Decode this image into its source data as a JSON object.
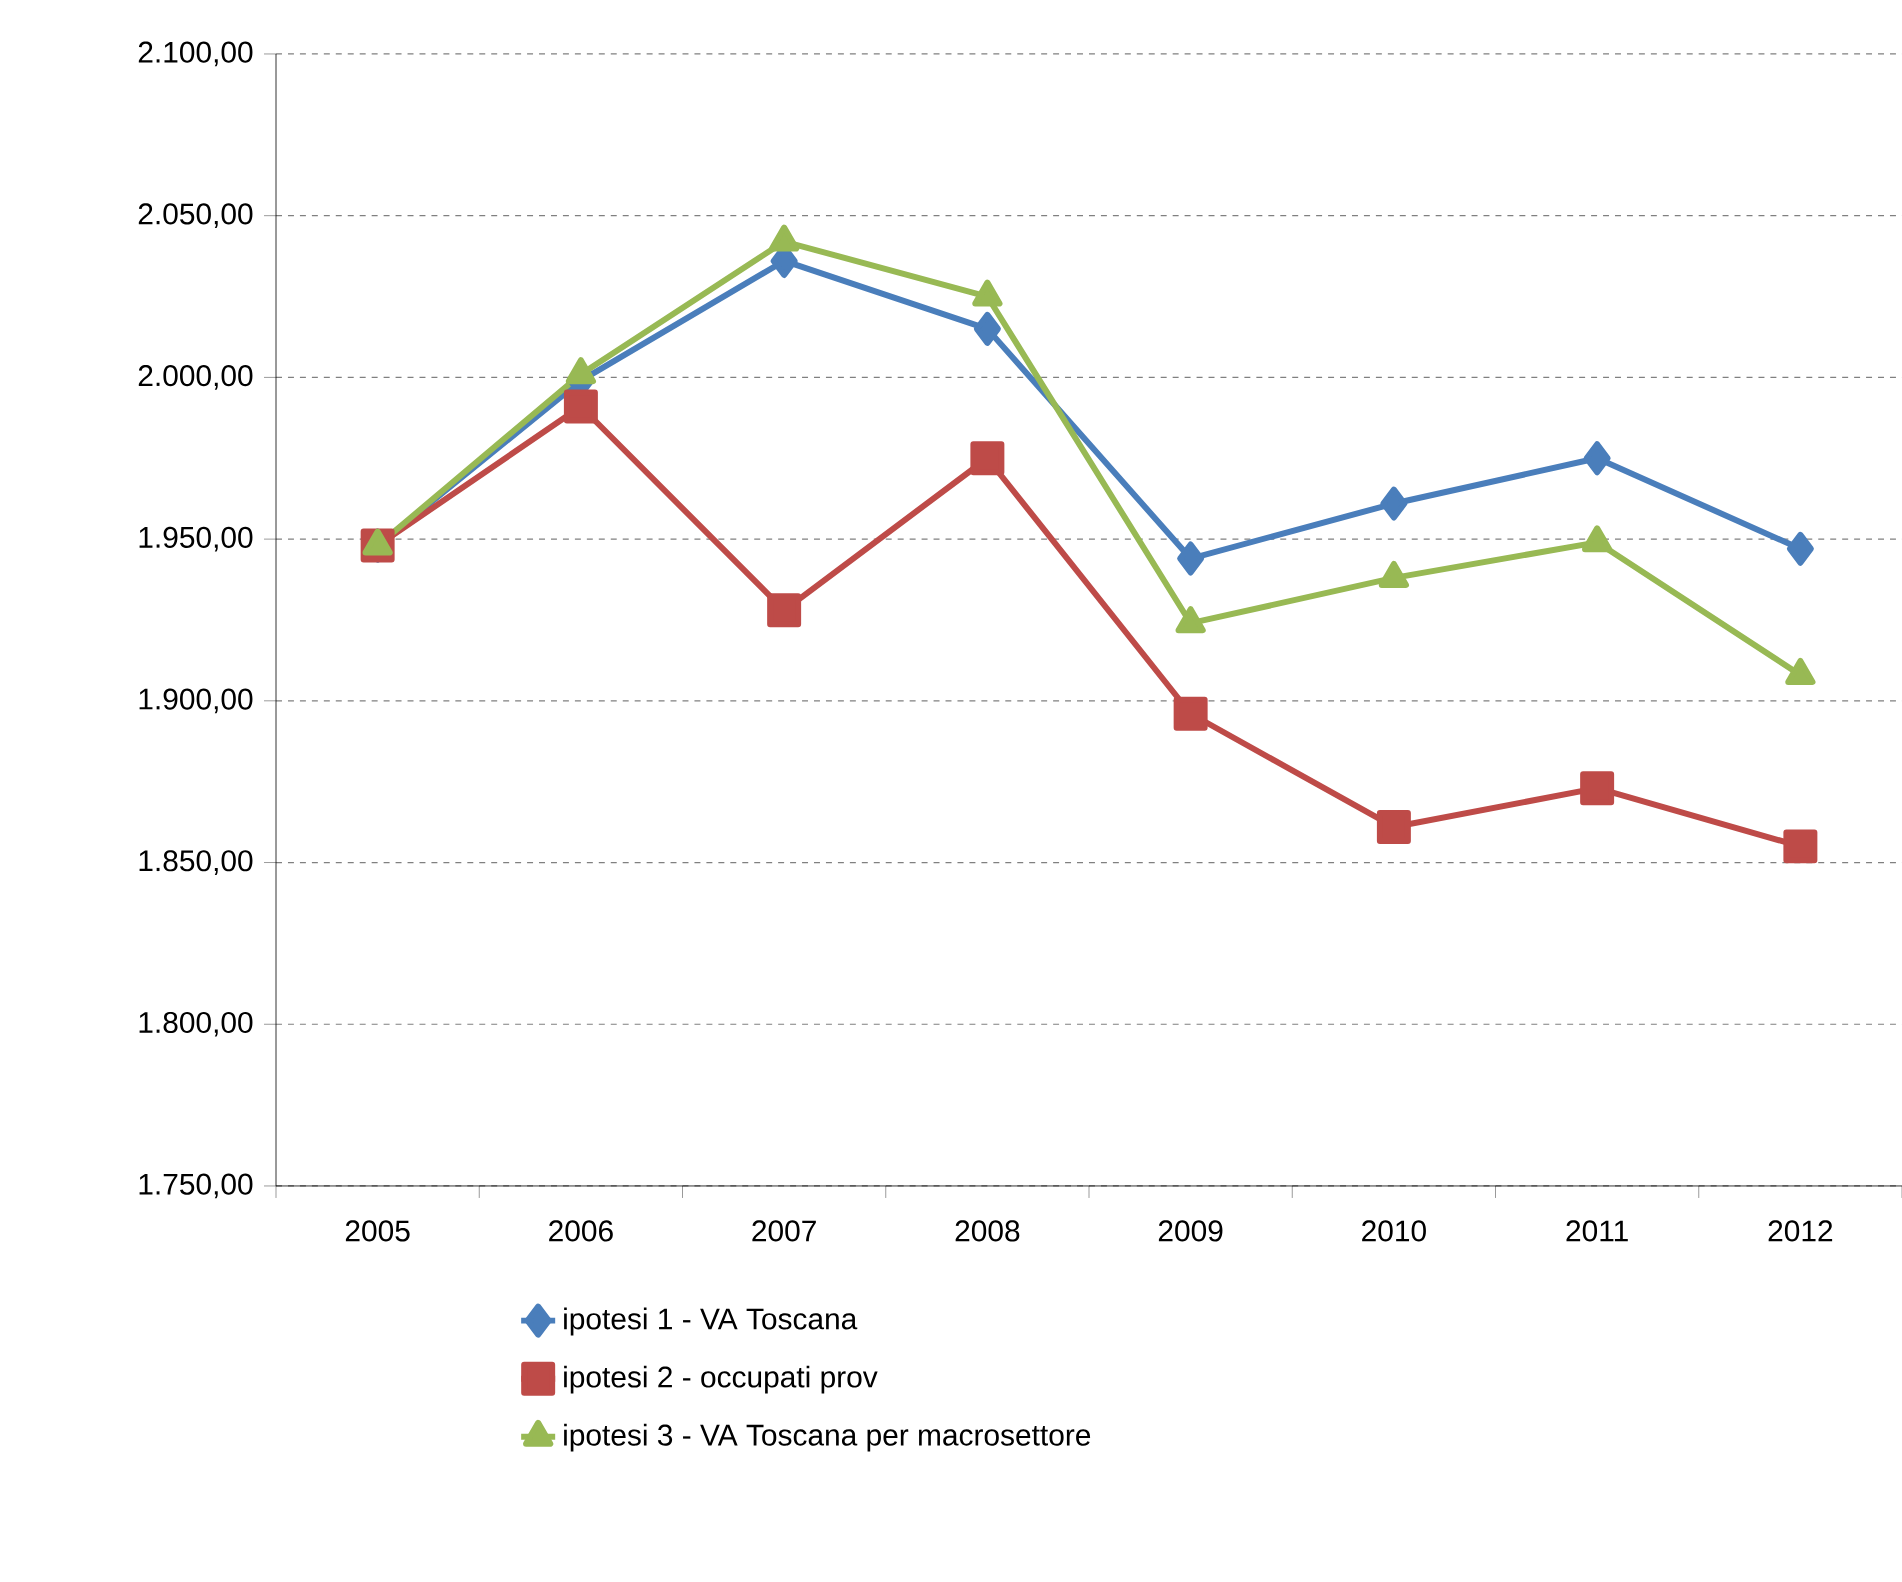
{
  "chart_data": {
    "type": "line",
    "categories": [
      "2005",
      "2006",
      "2007",
      "2008",
      "2009",
      "2010",
      "2011",
      "2012"
    ],
    "series": [
      {
        "name": "ipotesi 1 - VA Toscana",
        "color": "#4a7ebb",
        "marker": "diamond",
        "values": [
          1948,
          1999,
          2036,
          2015,
          1944,
          1961,
          1975,
          1947
        ]
      },
      {
        "name": "ipotesi 2 - occupati prov",
        "color": "#be4b48",
        "marker": "square",
        "values": [
          1948,
          1991,
          1928,
          1975,
          1896,
          1861,
          1873,
          1855
        ]
      },
      {
        "name": "ipotesi 3 - VA Toscana per macrosettore",
        "color": "#98b954",
        "marker": "triangle",
        "values": [
          1948,
          2001,
          2042,
          2025,
          1924,
          1938,
          1949,
          1908
        ]
      }
    ],
    "ylim": [
      1750,
      2100
    ],
    "yticks": [
      {
        "value": 1750,
        "label": "1.750,00"
      },
      {
        "value": 1800,
        "label": "1.800,00"
      },
      {
        "value": 1850,
        "label": "1.850,00"
      },
      {
        "value": 1900,
        "label": "1.900,00"
      },
      {
        "value": 1950,
        "label": "1.950,00"
      },
      {
        "value": 2000,
        "label": "2.000,00"
      },
      {
        "value": 2050,
        "label": "2.050,00"
      },
      {
        "value": 2100,
        "label": "2.100,00"
      }
    ],
    "grid": "y",
    "legend": "bottom",
    "line_style": "solid"
  }
}
